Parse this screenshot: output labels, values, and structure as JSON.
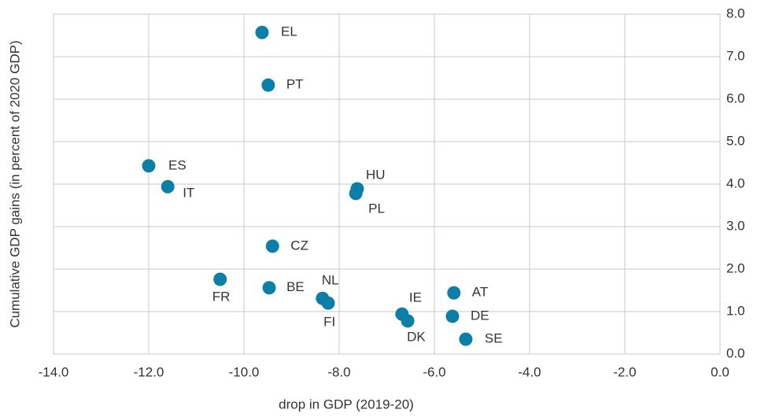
{
  "chart_data": {
    "type": "scatter",
    "x_label": "drop in GDP (2019-20)",
    "y_label": "Cumulative GDP gains (in percent of 2020 GDP)",
    "labels": [
      "EL",
      "PT",
      "ES",
      "IT",
      "HU",
      "PL",
      "CZ",
      "FR",
      "BE",
      "NL",
      "FI",
      "IE",
      "DK",
      "AT",
      "DE",
      "SE"
    ],
    "x": [
      -9.62,
      -9.49,
      -12.0,
      -11.6,
      -7.62,
      -7.65,
      -9.4,
      -10.5,
      -9.47,
      -8.35,
      -8.23,
      -6.68,
      -6.56,
      -5.59,
      -5.62,
      -5.34
    ],
    "values": [
      7.57,
      6.33,
      4.43,
      3.94,
      3.89,
      3.78,
      2.54,
      1.76,
      1.56,
      1.31,
      1.2,
      0.94,
      0.78,
      1.44,
      0.89,
      0.35
    ],
    "color": "#0b7fa8",
    "xlim": [
      -14,
      0
    ],
    "ylim": [
      0,
      8
    ],
    "xticks": [
      {
        "value": -14,
        "label": "-14.0"
      },
      {
        "value": -12,
        "label": "-12.0"
      },
      {
        "value": -10,
        "label": "-10.0"
      },
      {
        "value": -8,
        "label": "-8.0"
      },
      {
        "value": -6,
        "label": "-6.0"
      },
      {
        "value": -4,
        "label": "-4.0"
      },
      {
        "value": -2,
        "label": "-2.0"
      },
      {
        "value": 0,
        "label": "0.0"
      }
    ],
    "yticks": [
      {
        "value": 0,
        "label": "0.0"
      },
      {
        "value": 1,
        "label": "1.0"
      },
      {
        "value": 2,
        "label": "2.0"
      },
      {
        "value": 3,
        "label": "3.0"
      },
      {
        "value": 4,
        "label": "4.0"
      },
      {
        "value": 5,
        "label": "5.0"
      },
      {
        "value": 6,
        "label": "6.0"
      },
      {
        "value": 7,
        "label": "7.0"
      },
      {
        "value": 8,
        "label": "8.0"
      }
    ],
    "grid": true
  }
}
